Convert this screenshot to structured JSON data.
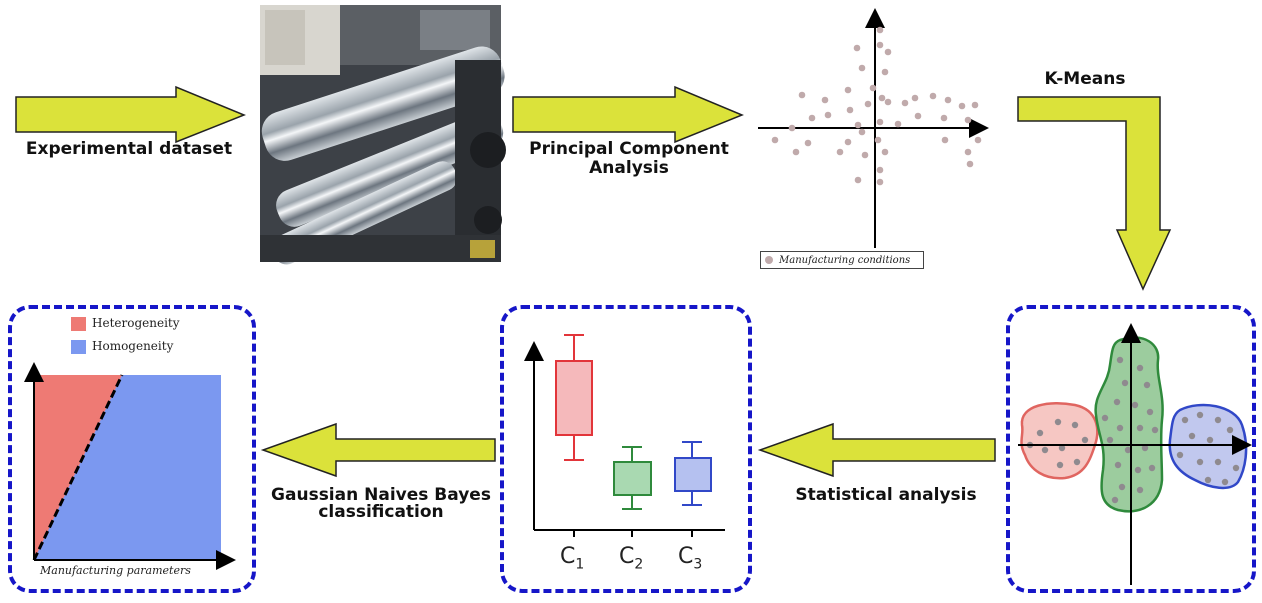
{
  "labels": {
    "experimental_dataset": "Experimental dataset",
    "pca_line1": "Principal Component",
    "pca_line2": "Analysis",
    "kmeans": "K-Means",
    "statistical_analysis": "Statistical analysis",
    "gnb_line1": "Gaussian Naives Bayes",
    "gnb_line2": "classification"
  },
  "pca_legend": "Manufacturing conditions",
  "classification_legend": [
    "Heterogeneity",
    "Homogeneity"
  ],
  "classification_xlabel": "Manufacturing parameters",
  "boxplot_categories": [
    "C",
    "C",
    "C"
  ],
  "boxplot_subscripts": [
    "1",
    "2",
    "3"
  ],
  "colors": {
    "arrow_fill": "#dbe23a",
    "arrow_stroke": "#222222",
    "dashed_border": "#1616c8",
    "point": "#c0aaab",
    "red_region": "#ee7a74",
    "blue_region": "#7b98f0",
    "cluster_red": "#f6c7c3",
    "cluster_green": "#9ccc9e",
    "cluster_blue": "#c1c8ee"
  }
}
